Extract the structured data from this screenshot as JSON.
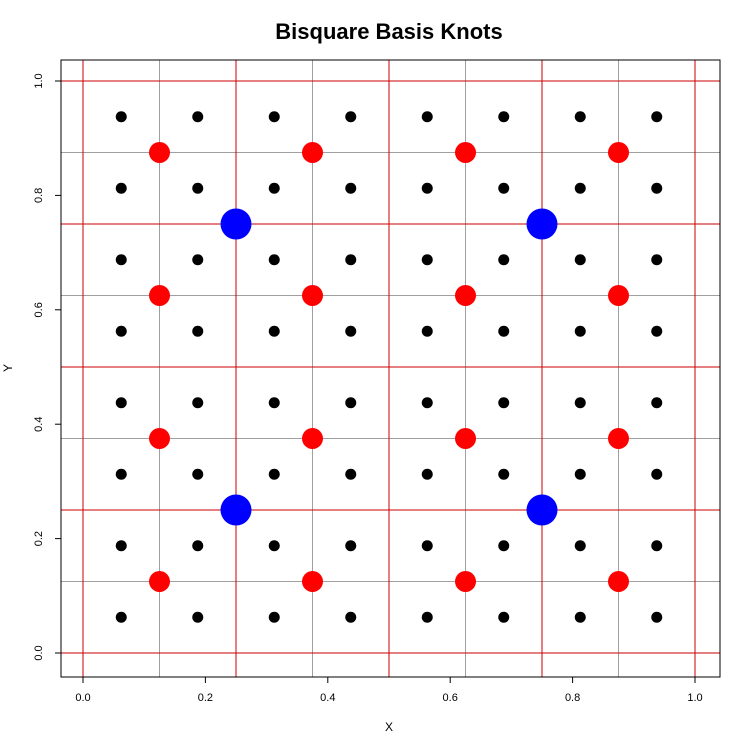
{
  "chart_data": {
    "type": "scatter",
    "title": "Bisquare Basis Knots",
    "xlabel": "X",
    "ylabel": "Y",
    "xlim": [
      -0.04,
      1.04
    ],
    "ylim": [
      -0.04,
      1.04
    ],
    "xticks": [
      "0.0",
      "0.2",
      "0.4",
      "0.6",
      "0.8",
      "1.0"
    ],
    "yticks": [
      "0.0",
      "0.2",
      "0.4",
      "0.6",
      "0.8",
      "1.0"
    ],
    "grid": {
      "gray_lines": [
        0.125,
        0.375,
        0.625,
        0.875
      ],
      "red_lines": [
        0.0,
        0.25,
        0.5,
        0.75,
        1.0
      ],
      "gray_color": "#a0a0a0",
      "red_color": "#cc0000"
    },
    "series": [
      {
        "color": "#000000",
        "size": "small",
        "coords": [
          0.0625,
          0.1875,
          0.3125,
          0.4375,
          0.5625,
          0.6875,
          0.8125,
          0.9375
        ]
      },
      {
        "color": "#ff0000",
        "size": "medium",
        "coords": [
          0.125,
          0.375,
          0.625,
          0.875
        ]
      },
      {
        "color": "#0000ff",
        "size": "large",
        "coords": [
          0.25,
          0.75
        ]
      }
    ]
  }
}
